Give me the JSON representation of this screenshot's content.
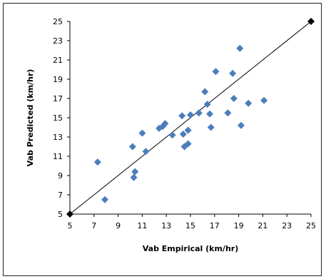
{
  "chart_data": {
    "type": "scatter",
    "xlabel": "Vab Empirical (km/hr)",
    "ylabel": "Vab Predicted (km/hr)",
    "xlim": [
      5,
      25
    ],
    "ylim": [
      5,
      25
    ],
    "xticks": [
      5,
      7,
      9,
      11,
      13,
      15,
      17,
      19,
      21,
      23,
      25
    ],
    "yticks": [
      5,
      7,
      9,
      11,
      13,
      15,
      17,
      19,
      21,
      23,
      25
    ],
    "grid": false,
    "legend": "none",
    "marker": "diamond",
    "marker_color": "#4a7ebb",
    "line_color": "#000000",
    "reference_line": {
      "from": [
        5,
        5
      ],
      "to": [
        25,
        25
      ],
      "arrowheads": true
    },
    "points": [
      {
        "x": 7.3,
        "y": 10.4
      },
      {
        "x": 7.9,
        "y": 6.5
      },
      {
        "x": 10.2,
        "y": 12.0
      },
      {
        "x": 10.3,
        "y": 8.8
      },
      {
        "x": 10.4,
        "y": 9.4
      },
      {
        "x": 11.0,
        "y": 13.4
      },
      {
        "x": 11.3,
        "y": 11.5
      },
      {
        "x": 12.4,
        "y": 13.9
      },
      {
        "x": 12.7,
        "y": 14.1
      },
      {
        "x": 12.9,
        "y": 14.4
      },
      {
        "x": 13.5,
        "y": 13.2
      },
      {
        "x": 14.3,
        "y": 15.2
      },
      {
        "x": 14.4,
        "y": 13.3
      },
      {
        "x": 14.5,
        "y": 12.0
      },
      {
        "x": 14.8,
        "y": 13.7
      },
      {
        "x": 14.8,
        "y": 12.3
      },
      {
        "x": 15.0,
        "y": 15.3
      },
      {
        "x": 15.7,
        "y": 15.5
      },
      {
        "x": 16.2,
        "y": 17.7
      },
      {
        "x": 16.4,
        "y": 16.4
      },
      {
        "x": 16.6,
        "y": 15.4
      },
      {
        "x": 16.7,
        "y": 14.0
      },
      {
        "x": 17.1,
        "y": 19.8
      },
      {
        "x": 18.1,
        "y": 15.5
      },
      {
        "x": 18.5,
        "y": 19.6
      },
      {
        "x": 18.6,
        "y": 17.0
      },
      {
        "x": 19.1,
        "y": 22.2
      },
      {
        "x": 19.2,
        "y": 14.2
      },
      {
        "x": 19.8,
        "y": 16.5
      },
      {
        "x": 21.1,
        "y": 16.8
      }
    ]
  }
}
